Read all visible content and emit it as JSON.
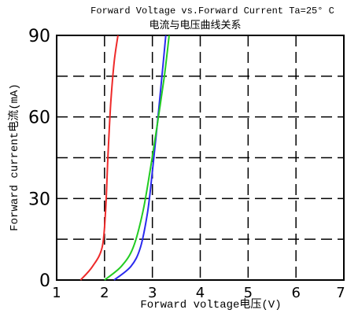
{
  "chart_data": {
    "type": "line",
    "title": "Forward Voltage vs.Forward Current Ta=25° C",
    "subtitle": "电流与电压曲线关系",
    "xlabel": "Forward voltage电压(V)",
    "ylabel": "Forward current电流(mA)",
    "xlim": [
      1,
      7
    ],
    "ylim": [
      0,
      90
    ],
    "x_ticks": [
      "1",
      "2",
      "3",
      "4",
      "5",
      "6",
      "7"
    ],
    "y_ticks": [
      "0",
      "30",
      "60",
      "90"
    ],
    "grid": true,
    "colors": {
      "red": "#ee2a2a",
      "blue": "#2a2aee",
      "green": "#22cc22"
    },
    "series": [
      {
        "color": "red",
        "x": [
          1.5,
          1.75,
          1.95,
          2.02,
          2.07,
          2.13,
          2.2,
          2.28
        ],
        "y": [
          0,
          5,
          12,
          25,
          45,
          65,
          80,
          90
        ]
      },
      {
        "color": "blue",
        "x": [
          2.2,
          2.55,
          2.75,
          2.9,
          3.0,
          3.1,
          3.2,
          3.28
        ],
        "y": [
          0,
          5,
          12,
          25,
          40,
          57,
          75,
          90
        ]
      },
      {
        "color": "green",
        "x": [
          2.0,
          2.35,
          2.6,
          2.8,
          2.95,
          3.1,
          3.25,
          3.35
        ],
        "y": [
          0,
          5,
          12,
          25,
          40,
          57,
          75,
          90
        ]
      }
    ]
  }
}
